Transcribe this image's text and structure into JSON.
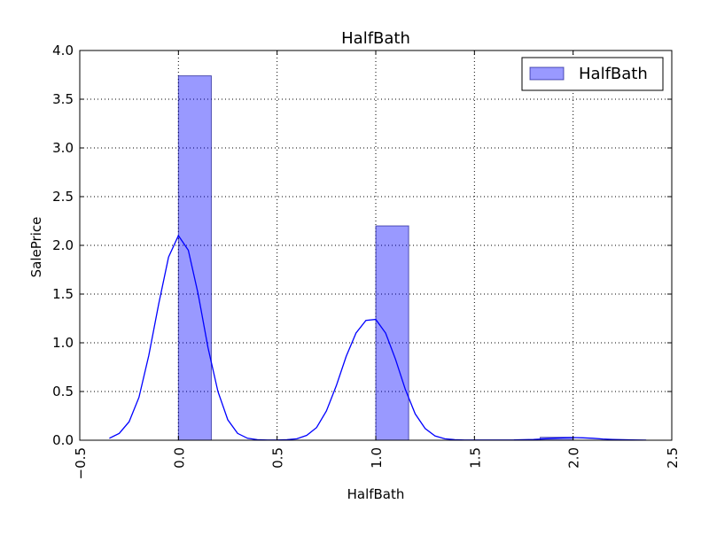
{
  "chart_data": {
    "type": "bar",
    "title": "HalfBath",
    "xlabel": "HalfBath",
    "ylabel": "SalePrice",
    "xlim": [
      -0.5,
      2.5
    ],
    "ylim": [
      0,
      4.0
    ],
    "xticks": [
      "−0.5",
      "0.0",
      "0.5",
      "1.0",
      "1.5",
      "2.0",
      "2.5"
    ],
    "yticks": [
      "0.0",
      "0.5",
      "1.0",
      "1.5",
      "2.0",
      "2.5",
      "3.0",
      "3.5",
      "4.0"
    ],
    "grid": true,
    "legend": {
      "position": "top-right",
      "entries": [
        "HalfBath"
      ]
    },
    "histogram": {
      "name": "HalfBath",
      "color": "#0000ff",
      "bins": [
        {
          "x0": 0.0,
          "x1": 0.1667,
          "density": 3.74
        },
        {
          "x0": 1.0,
          "x1": 1.1667,
          "density": 2.2
        },
        {
          "x0": 1.8333,
          "x1": 2.0,
          "density": 0.03
        }
      ]
    },
    "kde": {
      "color": "#0000ff",
      "x": [
        -0.35,
        -0.3,
        -0.25,
        -0.2,
        -0.15,
        -0.1,
        -0.05,
        0.0,
        0.05,
        0.1,
        0.15,
        0.2,
        0.25,
        0.3,
        0.35,
        0.4,
        0.45,
        0.5,
        0.55,
        0.6,
        0.65,
        0.7,
        0.75,
        0.8,
        0.85,
        0.9,
        0.95,
        1.0,
        1.05,
        1.1,
        1.15,
        1.2,
        1.25,
        1.3,
        1.35,
        1.4,
        1.45,
        1.5,
        1.6,
        1.7,
        1.8,
        1.85,
        1.9,
        1.95,
        2.0,
        2.05,
        2.1,
        2.15,
        2.2,
        2.3,
        2.37
      ],
      "y": [
        0.02,
        0.07,
        0.19,
        0.44,
        0.87,
        1.4,
        1.88,
        2.1,
        1.95,
        1.5,
        0.95,
        0.5,
        0.21,
        0.07,
        0.02,
        0.005,
        0.002,
        0.002,
        0.005,
        0.015,
        0.05,
        0.13,
        0.3,
        0.56,
        0.86,
        1.1,
        1.23,
        1.24,
        1.1,
        0.83,
        0.52,
        0.27,
        0.12,
        0.045,
        0.015,
        0.005,
        0.002,
        0.002,
        0.002,
        0.003,
        0.008,
        0.014,
        0.02,
        0.025,
        0.027,
        0.025,
        0.02,
        0.013,
        0.008,
        0.003,
        0.001
      ]
    }
  }
}
